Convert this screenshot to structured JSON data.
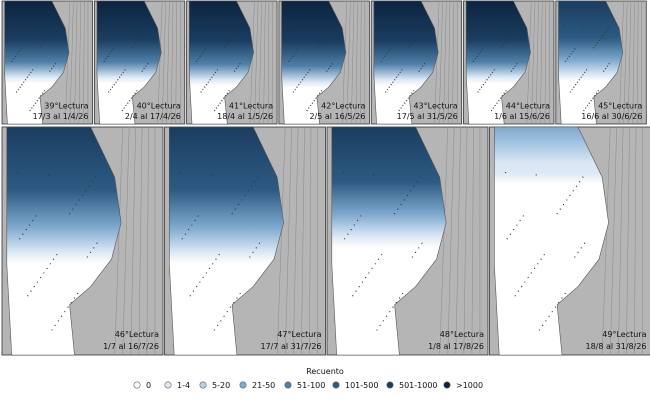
{
  "panels": [
    {
      "title": "39°Lectura",
      "dates": "17/3 al 1/4/26"
    },
    {
      "title": "40°Lectura",
      "dates": "2/4 al 17/4/26"
    },
    {
      "title": "41°Lectura",
      "dates": "18/4 al 1/5/26"
    },
    {
      "title": "42°Lectura",
      "dates": "2/5 al 16/5/26"
    },
    {
      "title": "43°Lectura",
      "dates": "17/5 al 31/5/26"
    },
    {
      "title": "44°Lectura",
      "dates": "1/6 al 15/6/26"
    },
    {
      "title": "45°Lectura",
      "dates": "16/6 al 30/6/26"
    },
    {
      "title": "46°Lectura",
      "dates": "1/7 al 16/7/26"
    },
    {
      "title": "47°Lectura",
      "dates": "17/7 al 31/7/26"
    },
    {
      "title": "48°Lectura",
      "dates": "1/8 al 17/8/26"
    },
    {
      "title": "49°Lectura",
      "dates": "18/8 al 31/8/26"
    }
  ],
  "legend": {
    "title": "Recuento",
    "items": [
      {
        "label": "0",
        "color": "#ffffff"
      },
      {
        "label": "1-4",
        "color": "#dce9f5"
      },
      {
        "label": "5-20",
        "color": "#b4cfe8"
      },
      {
        "label": "21-50",
        "color": "#7fa9cf"
      },
      {
        "label": "51-100",
        "color": "#4f7fa8"
      },
      {
        "label": "101-500",
        "color": "#2d5a82"
      },
      {
        "label": "501-1000",
        "color": "#1a3d60"
      },
      {
        "label": ">1000",
        "color": "#0c2440"
      }
    ]
  }
}
